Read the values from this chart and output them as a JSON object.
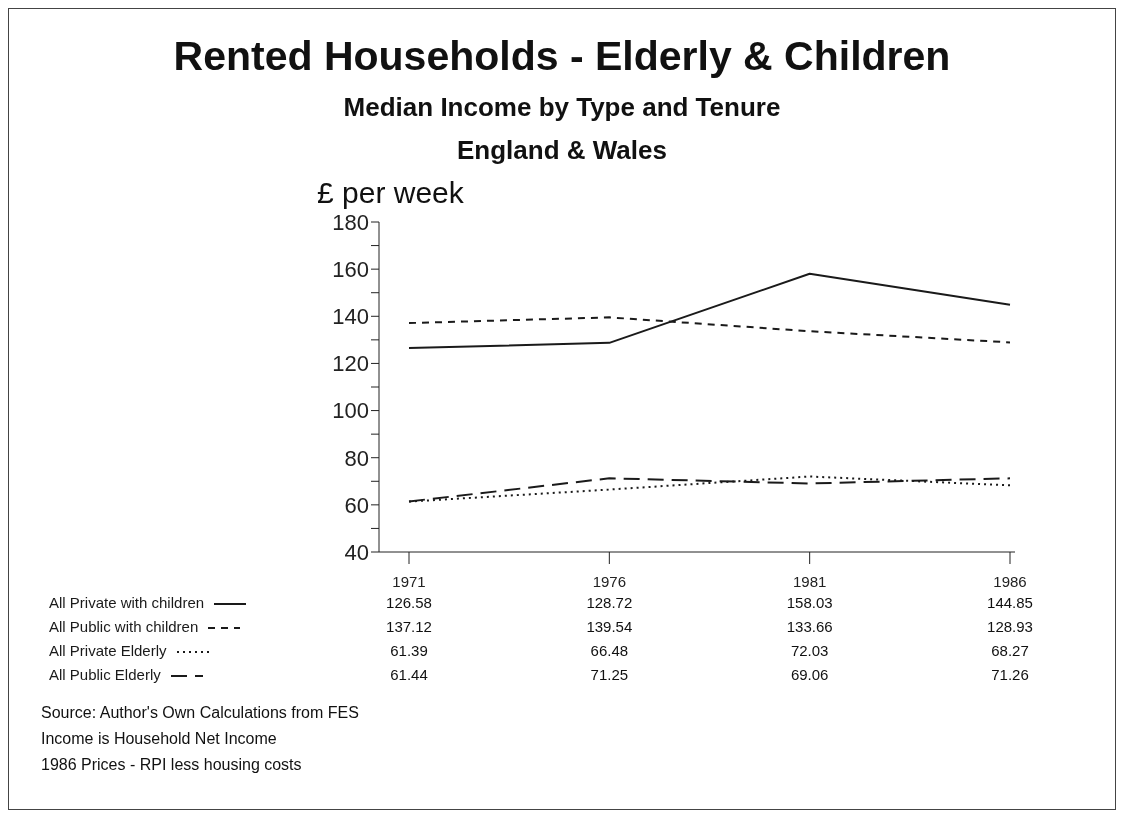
{
  "chart_data": {
    "type": "line",
    "title": "Rented Households - Elderly & Children",
    "subtitle": "Median Income by Type and Tenure\nEngland & Wales",
    "ylabel": "£ per week",
    "categories": [
      "1971",
      "1976",
      "1981",
      "1986"
    ],
    "series": [
      {
        "name": "All Private with children",
        "color": "#1a1a1a",
        "line_style": "solid",
        "values": [
          126.58,
          128.72,
          158.03,
          144.85
        ]
      },
      {
        "name": "All Public with children",
        "color": "#1a1a1a",
        "line_style": "dashed",
        "values": [
          137.12,
          139.54,
          133.66,
          128.93
        ]
      },
      {
        "name": "All Private Elderly",
        "color": "#1a1a1a",
        "line_style": "dotted",
        "values": [
          61.39,
          66.48,
          72.03,
          68.27
        ]
      },
      {
        "name": "All Public Elderly",
        "color": "#1a1a1a",
        "line_style": "dashed",
        "values": [
          61.44,
          71.25,
          69.06,
          71.26
        ]
      }
    ],
    "ylim": [
      40,
      180
    ],
    "yticks": [
      40,
      {
        "value": 50,
        "label": null
      },
      60,
      {
        "value": 70,
        "label": null
      },
      80,
      {
        "value": 90,
        "label": null
      },
      100,
      {
        "value": 110,
        "label": null
      },
      120,
      {
        "value": 130,
        "label": null
      },
      140,
      {
        "value": 150,
        "label": null
      },
      160,
      {
        "value": 170,
        "label": null
      },
      180
    ],
    "grid": false,
    "legend": "bottom",
    "marker": "none",
    "data_labels": true,
    "annotations": [
      "Source: Author's Own Calculations from FES",
      "Income is Household Net Income",
      "1986 Prices - RPI less housing costs"
    ]
  }
}
